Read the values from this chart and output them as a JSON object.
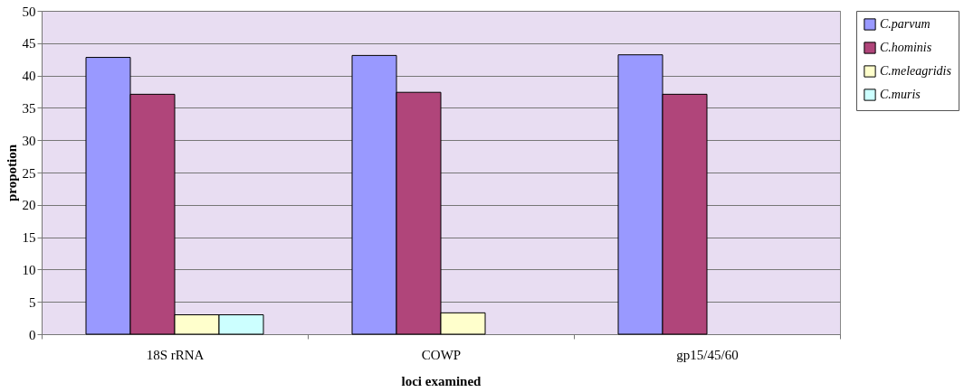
{
  "chart_data": {
    "type": "bar",
    "xlabel": "loci examined",
    "ylabel": "propotion",
    "categories": [
      "18S rRNA",
      "COWP",
      "gp15/45/60"
    ],
    "series": [
      {
        "name": "C.parvum",
        "color": "#9999ff",
        "values": [
          42.8,
          43.1,
          43.2
        ]
      },
      {
        "name": "C.hominis",
        "color": "#b0457a",
        "values": [
          37.1,
          37.4,
          37.1
        ]
      },
      {
        "name": "C.meleagridis",
        "color": "#ffffcc",
        "values": [
          3.0,
          3.3,
          null
        ]
      },
      {
        "name": "C.muris",
        "color": "#ccffff",
        "values": [
          3.0,
          null,
          null
        ]
      }
    ],
    "ylim": [
      0,
      50
    ],
    "yticks": [
      0,
      5,
      10,
      15,
      20,
      25,
      30,
      35,
      40,
      45,
      50
    ],
    "grid": "y",
    "legend": "right"
  }
}
